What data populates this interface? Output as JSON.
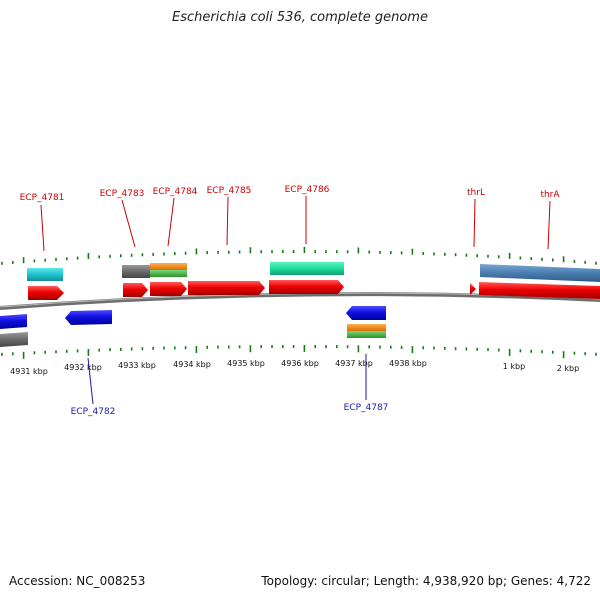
{
  "title": "Escherichia coli 536, complete genome",
  "footer": {
    "accession": "Accession: NC_008253",
    "stats": "Topology: circular; Length: 4,938,920 bp; Genes: 4,722"
  },
  "colors": {
    "forward_gene": "#ee0000",
    "reverse_gene": "#0a0ae0",
    "forward_label": "#cc0000",
    "reverse_label": "#1a1aaa",
    "tick": "#1a7a1a",
    "backbone": "#777777",
    "gray": "#6e6e6e",
    "cyan": "#2ec8d0",
    "orange": "#f08a10",
    "green": "#44b844",
    "teal": "#20e0a0",
    "steel_blue": "#4a7eb0"
  },
  "scale_labels": [
    "4931 kbp",
    "4932 kbp",
    "4933 kbp",
    "4934 kbp",
    "4935 kbp",
    "4936 kbp",
    "4937 kbp",
    "4938 kbp",
    "1 kbp",
    "2 kbp"
  ],
  "gene_labels": {
    "top": [
      "ECP_4781",
      "ECP_4783",
      "ECP_4784",
      "ECP_4785",
      "ECP_4786",
      "thrL",
      "thrA"
    ],
    "bottom": [
      "ECP_4782",
      "ECP_4787"
    ]
  }
}
